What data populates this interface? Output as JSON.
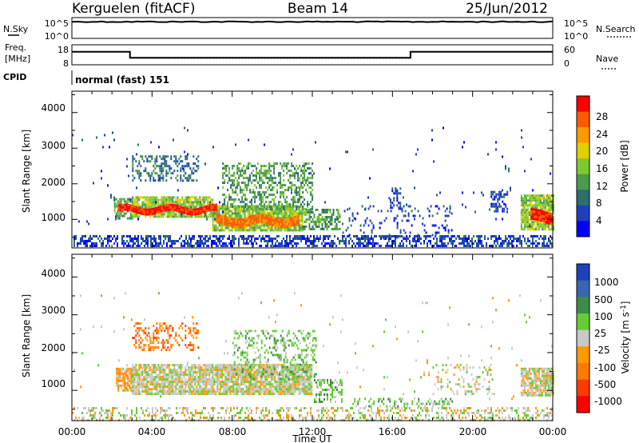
{
  "header": {
    "station": "Kerguelen (fitACF)",
    "beam": "Beam 14",
    "date": "25/Jun/2012"
  },
  "noise_panel": {
    "left_label": "N.Sky",
    "right_label": "N.Search",
    "ticks_left": [
      "10^5",
      "10^0"
    ],
    "ticks_right": [
      "10^5",
      "10^0"
    ],
    "trace_level": 0.2
  },
  "freq_panel": {
    "left_label": "Freq.",
    "left_unit": "[MHz]",
    "right_label": "Nave",
    "ticks_left": [
      "18",
      "8"
    ],
    "ticks_right": [
      "60",
      "0"
    ],
    "freq_high": 14.5,
    "freq_low": 11.5,
    "freq_drop_start_h": 2.9,
    "freq_drop_end_h": 16.9,
    "nave_level": 20
  },
  "cpid": {
    "label": "CPID",
    "value": "normal (fast) 151"
  },
  "x_axis": {
    "title": "Time UT",
    "ticks": [
      "00:00",
      "04:00",
      "08:00",
      "12:00",
      "16:00",
      "20:00",
      "00:00"
    ]
  },
  "power_panel": {
    "ylabel": "Slant Range [km]",
    "y_ticks": [
      "4000",
      "3000",
      "2000",
      "1000"
    ],
    "colorbar_label": "Power [dB]",
    "colorbar_ticks": [
      "28",
      "24",
      "20",
      "16",
      "12",
      "8",
      "4"
    ],
    "colors": [
      "#0000ff",
      "#1f3fbf",
      "#2e6e6e",
      "#4c9a4c",
      "#7ec832",
      "#e0d000",
      "#ff9900",
      "#ff5a00",
      "#ff0000"
    ]
  },
  "velocity_panel": {
    "ylabel": "Slant Range [km]",
    "y_ticks": [
      "4000",
      "3000",
      "2000",
      "1000"
    ],
    "colorbar_label": "Velocity [m s",
    "colorbar_label_sup": "-1",
    "colorbar_label_end": "]",
    "colorbar_ticks": [
      "1000",
      "500",
      "100",
      "25",
      "-25",
      "-100",
      "-500",
      "-1000"
    ],
    "colors": [
      "#2040c0",
      "#3a66b0",
      "#3f8a4a",
      "#66cc33",
      "#c8c8c8",
      "#ff9900",
      "#ff7a00",
      "#ff3a00",
      "#ff0000"
    ]
  },
  "chart_data": [
    {
      "type": "heatmap",
      "title": "Power",
      "xlabel": "Time UT",
      "ylabel": "Slant Range [km]",
      "xlim": [
        0,
        24
      ],
      "ylim": [
        200,
        4600
      ],
      "colorbar_label": "Power [dB]",
      "scatter_regions": [
        {
          "t0": 0.0,
          "t1": 24.0,
          "r0": 230,
          "r1": 560,
          "level": 1,
          "density": 0.55
        },
        {
          "t0": 2.1,
          "t1": 3.0,
          "r0": 1000,
          "r1": 1600,
          "level": 3,
          "density": 0.8
        },
        {
          "t0": 3.0,
          "t1": 7.0,
          "r0": 1050,
          "r1": 1650,
          "level": 4,
          "density": 0.85
        },
        {
          "t0": 7.0,
          "t1": 11.5,
          "r0": 700,
          "r1": 1400,
          "level": 4,
          "density": 0.85
        },
        {
          "t0": 7.5,
          "t1": 12.0,
          "r0": 1300,
          "r1": 2600,
          "level": 3,
          "density": 0.45
        },
        {
          "t0": 3.0,
          "t1": 6.3,
          "r0": 2100,
          "r1": 2800,
          "level": 2,
          "density": 0.35
        },
        {
          "t0": 11.5,
          "t1": 13.4,
          "r0": 700,
          "r1": 1300,
          "level": 3,
          "density": 0.55
        },
        {
          "t0": 13.5,
          "t1": 19.0,
          "r0": 500,
          "r1": 1400,
          "level": 1,
          "density": 0.15
        },
        {
          "t0": 15.8,
          "t1": 16.4,
          "r0": 1350,
          "r1": 1900,
          "level": 1,
          "density": 0.4
        },
        {
          "t0": 20.9,
          "t1": 21.7,
          "r0": 1200,
          "r1": 1800,
          "level": 1,
          "density": 0.45
        },
        {
          "t0": 22.4,
          "t1": 24.0,
          "r0": 700,
          "r1": 1700,
          "level": 4,
          "density": 0.9
        },
        {
          "t0": 0.0,
          "t1": 24.0,
          "r0": 800,
          "r1": 3600,
          "level": 1,
          "density": 0.01
        }
      ],
      "peak_bands": [
        {
          "t0": 2.3,
          "t1": 7.2,
          "r0": 1150,
          "r1": 1450,
          "level": 8
        },
        {
          "t0": 7.2,
          "t1": 11.3,
          "r0": 750,
          "r1": 1200,
          "level": 7
        },
        {
          "t0": 22.9,
          "t1": 24.0,
          "r0": 800,
          "r1": 1400,
          "level": 8
        }
      ]
    },
    {
      "type": "heatmap",
      "title": "Velocity",
      "xlabel": "Time UT",
      "ylabel": "Slant Range [km]",
      "xlim": [
        0,
        24
      ],
      "ylim": [
        200,
        4600
      ],
      "colorbar_label": "Velocity [m s-1]",
      "scatter_regions": [
        {
          "t0": 0.0,
          "t1": 24.0,
          "r0": 230,
          "r1": 560,
          "level": 4,
          "density": 0.35
        },
        {
          "t0": 2.2,
          "t1": 3.0,
          "r0": 1000,
          "r1": 1600,
          "level": 5,
          "density": 0.8
        },
        {
          "t0": 3.0,
          "t1": 12.0,
          "r0": 900,
          "r1": 1700,
          "level": 4,
          "density": 0.85
        },
        {
          "t0": 3.0,
          "t1": 6.3,
          "r0": 2100,
          "r1": 2800,
          "level": 6,
          "density": 0.35
        },
        {
          "t0": 8.0,
          "t1": 12.2,
          "r0": 1300,
          "r1": 2600,
          "level": 3,
          "density": 0.3
        },
        {
          "t0": 12.0,
          "t1": 13.5,
          "r0": 700,
          "r1": 1300,
          "level": 3,
          "density": 0.45
        },
        {
          "t0": 14.0,
          "t1": 19.0,
          "r0": 600,
          "r1": 800,
          "level": 3,
          "density": 0.3
        },
        {
          "t0": 18.0,
          "t1": 21.0,
          "r0": 900,
          "r1": 1700,
          "level": 4,
          "density": 0.2
        },
        {
          "t0": 22.4,
          "t1": 24.0,
          "r0": 900,
          "r1": 1600,
          "level": 4,
          "density": 0.85
        },
        {
          "t0": 0.0,
          "t1": 24.0,
          "r0": 800,
          "r1": 3600,
          "level": 4,
          "density": 0.01
        }
      ]
    }
  ]
}
